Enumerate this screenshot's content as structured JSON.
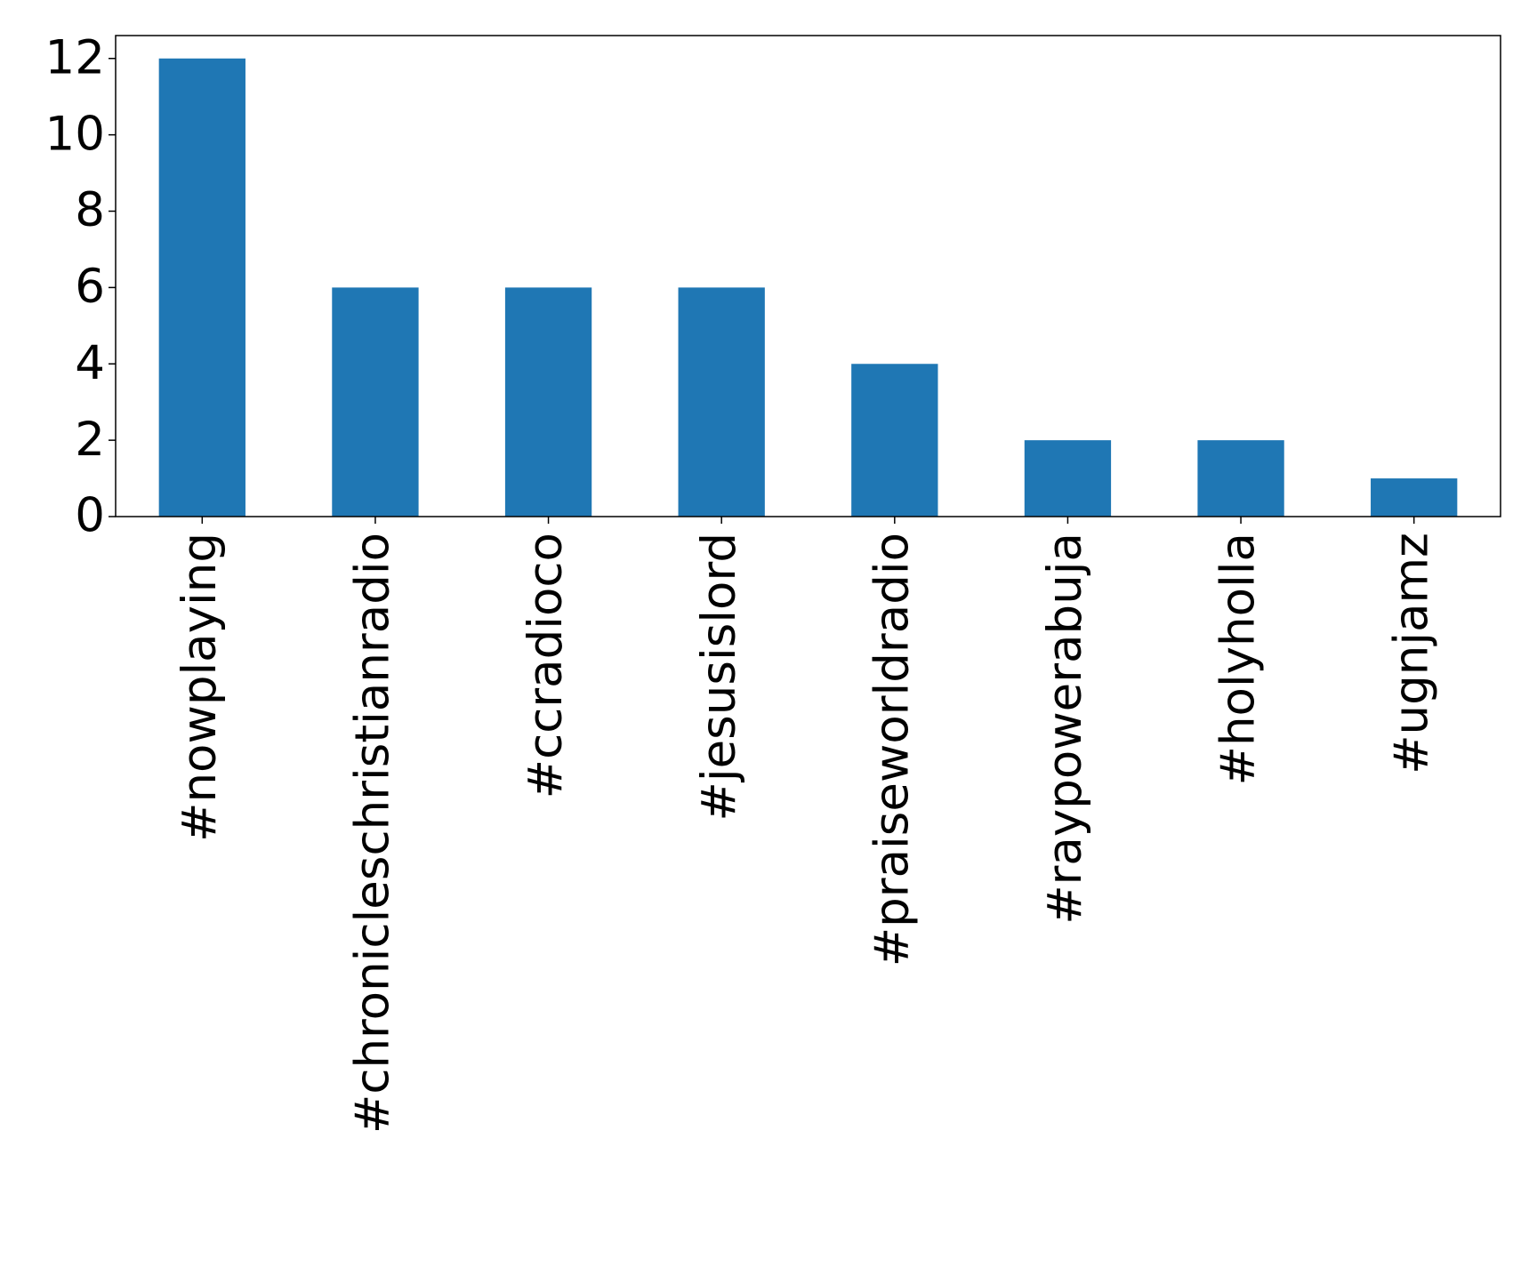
{
  "chart_data": {
    "type": "bar",
    "categories": [
      "#nowplaying",
      "#chronicleschristianradio",
      "#ccradioco",
      "#jesusislord",
      "#praiseworldradio",
      "#raypowerabuja",
      "#holyholla",
      "#ugnjamz"
    ],
    "values": [
      12,
      6,
      6,
      6,
      4,
      2,
      2,
      1
    ],
    "color": "#1f77b4",
    "ylim": [
      0,
      12.6
    ],
    "yticks": [
      0,
      2,
      4,
      6,
      8,
      10,
      12
    ],
    "grid": false
  }
}
